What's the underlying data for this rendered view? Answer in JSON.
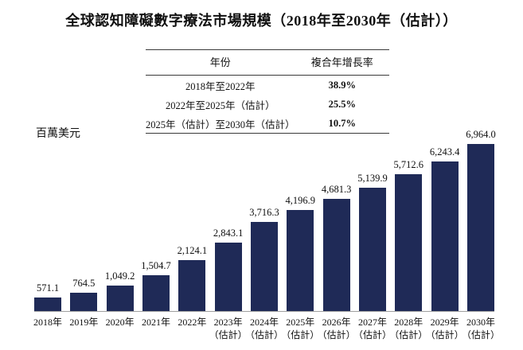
{
  "page": {
    "title": "全球認知障礙數字療法市場規模（2018年至2030年（估計））"
  },
  "cagr_table": {
    "headers": {
      "period": "年份",
      "cagr": "複合年增長率"
    },
    "rows": [
      {
        "period": "2018年至2022年",
        "cagr": "38.9%"
      },
      {
        "period": "2022年至2025年（估計）",
        "cagr": "25.5%"
      },
      {
        "period": "2025年（估計）至2030年（估計）",
        "cagr": "10.7%"
      }
    ]
  },
  "chart_data": {
    "type": "bar",
    "title": "全球認知障礙數字療法市場規模（2018年至2030年（估計））",
    "ylabel": "百萬美元",
    "xlabel": "",
    "ylim": [
      0,
      6964
    ],
    "grid": false,
    "legend": false,
    "bar_color": "#1F2A57",
    "axis_line_color": "#A0A0A0",
    "categories": [
      "2018年",
      "2019年",
      "2020年",
      "2021年",
      "2022年",
      "2023年（估計）",
      "2024年（估計）",
      "2025年（估計）",
      "2026年（估計）",
      "2027年（估計）",
      "2028年（估計）",
      "2029年（估計）",
      "2030年（估計）"
    ],
    "category_labels": [
      {
        "year": "2018年",
        "note": ""
      },
      {
        "year": "2019年",
        "note": ""
      },
      {
        "year": "2020年",
        "note": ""
      },
      {
        "year": "2021年",
        "note": ""
      },
      {
        "year": "2022年",
        "note": ""
      },
      {
        "year": "2023年",
        "note": "（估計）"
      },
      {
        "year": "2024年",
        "note": "（估計）"
      },
      {
        "year": "2025年",
        "note": "（估計）"
      },
      {
        "year": "2026年",
        "note": "（估計）"
      },
      {
        "year": "2027年",
        "note": "（估計）"
      },
      {
        "year": "2028年",
        "note": "（估計）"
      },
      {
        "year": "2029年",
        "note": "（估計）"
      },
      {
        "year": "2030年",
        "note": "（估計）"
      }
    ],
    "values": [
      571.1,
      764.5,
      1049.2,
      1504.7,
      2124.1,
      2843.1,
      3716.3,
      4196.9,
      4681.3,
      5139.9,
      5712.6,
      6243.4,
      6964.0
    ],
    "value_labels": [
      "571.1",
      "764.5",
      "1,049.2",
      "1,504.7",
      "2,124.1",
      "2,843.1",
      "3,716.3",
      "4,196.9",
      "4,681.3",
      "5,139.9",
      "5,712.6",
      "6,243.4",
      "6,964.0"
    ]
  }
}
